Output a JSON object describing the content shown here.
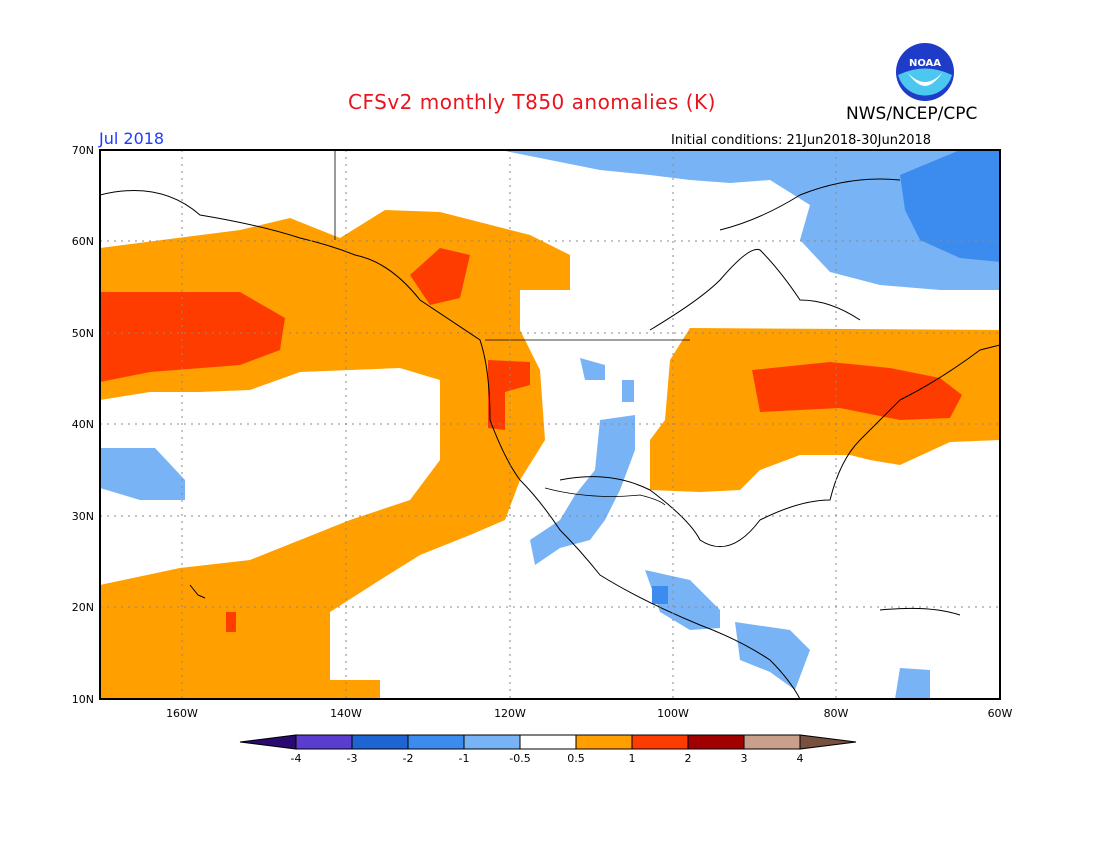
{
  "header": {
    "title": "CFSv2 monthly T850 anomalies (K)",
    "month": "Jul 2018",
    "agency": "NWS/NCEP/CPC",
    "initial_conditions": "Initial conditions: 21Jun2018-30Jun2018",
    "logo_text": "NOAA"
  },
  "map": {
    "extent": {
      "lon_min": -170,
      "lon_max": -60,
      "lat_min": 10,
      "lat_max": 70
    },
    "lat_ticks": [
      "70N",
      "60N",
      "50N",
      "40N",
      "30N",
      "20N",
      "10N"
    ],
    "lon_ticks": [
      "160W",
      "140W",
      "120W",
      "100W",
      "80W",
      "60W"
    ],
    "anomaly_regions": [
      {
        "level": "warm 0.5-1",
        "area": "NE Pacific band from Gulf of Alaska along west coast"
      },
      {
        "level": "warm 1-2",
        "area": "Central North Pacific near 50N 160W"
      },
      {
        "level": "warm 1-2",
        "area": "Pacific Northwest / British Columbia"
      },
      {
        "level": "warm 0.5-1",
        "area": "Central and Northeastern US"
      },
      {
        "level": "warm 1-2",
        "area": "Great Lakes and New England"
      },
      {
        "level": "warm 0.5-1",
        "area": "Subtropical Pacific near Hawaii"
      },
      {
        "level": "cool -0.5 to -1",
        "area": "Eastern Canada / Labrador"
      },
      {
        "level": "cool -0.5 to -1",
        "area": "Mexico and Central America patches"
      }
    ]
  },
  "colorbar": {
    "labels": [
      "-4",
      "-3",
      "-2",
      "-1",
      "-0.5",
      "0.5",
      "1",
      "2",
      "3",
      "4"
    ],
    "colors": [
      "#2a0a6e",
      "#5a3ccf",
      "#1e64d2",
      "#3c8cf0",
      "#78b4f5",
      "#ffffff",
      "#ffa000",
      "#ff3c00",
      "#a00000",
      "#c8a08c",
      "#785040"
    ]
  },
  "colors": {
    "warm1": "#ffa000",
    "warm2": "#ff3c00",
    "cool1": "#78b4f5",
    "cool2": "#3c8cf0",
    "title": "#e8141e",
    "month": "#1e3cff"
  }
}
